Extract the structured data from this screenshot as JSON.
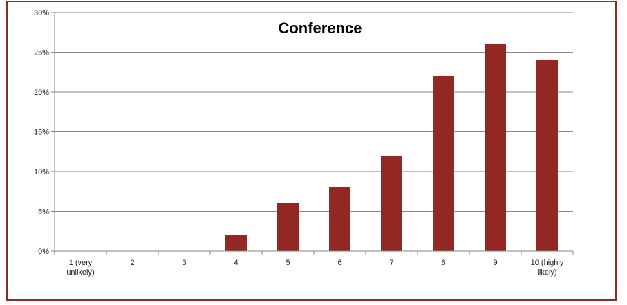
{
  "colors": {
    "bar": "#922724",
    "frame": "#8B2A2A",
    "grid": "#868686",
    "axis": "#868686"
  },
  "chart_data": {
    "type": "bar",
    "title": "Conference",
    "xlabel": "",
    "ylabel": "",
    "categories": [
      [
        "1 (very",
        "unlikely)"
      ],
      [
        "2"
      ],
      [
        "3"
      ],
      [
        "4"
      ],
      [
        "5"
      ],
      [
        "6"
      ],
      [
        "7"
      ],
      [
        "8"
      ],
      [
        "9"
      ],
      [
        "10 (highly",
        "likely)"
      ]
    ],
    "values": [
      0,
      0,
      0,
      2,
      6,
      8,
      12,
      22,
      26,
      24
    ],
    "ylim": [
      0,
      30
    ],
    "yticks": [
      0,
      5,
      10,
      15,
      20,
      25,
      30
    ],
    "ytick_labels": [
      "0%",
      "5%",
      "10%",
      "15%",
      "20%",
      "25%",
      "30%"
    ],
    "grid": true,
    "legend": "none"
  }
}
